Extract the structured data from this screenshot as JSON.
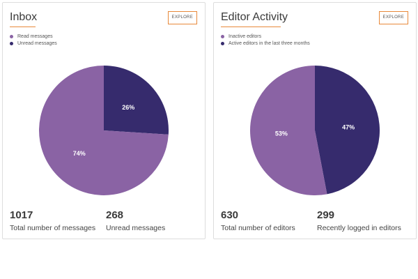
{
  "colors": {
    "primary_slice": "#8a63a4",
    "secondary_slice": "#362b6d",
    "accent": "#e8893a"
  },
  "cards": [
    {
      "title": "Inbox",
      "explore_label": "EXPLORE",
      "legend": [
        "Read messages",
        "Unread messages"
      ],
      "stats": [
        {
          "value": "1017",
          "label": "Total number of messages"
        },
        {
          "value": "268",
          "label": "Unread messages"
        }
      ]
    },
    {
      "title": "Editor Activity",
      "explore_label": "EXPLORE",
      "legend": [
        "Inactive editors",
        "Active editors in the last three months"
      ],
      "stats": [
        {
          "value": "630",
          "label": "Total number of editors"
        },
        {
          "value": "299",
          "label": "Recently logged in editors"
        }
      ]
    }
  ],
  "chart_data": [
    {
      "type": "pie",
      "categories": [
        "Read messages",
        "Unread messages"
      ],
      "values": [
        74,
        26
      ],
      "value_labels": [
        "74%",
        "26%"
      ]
    },
    {
      "type": "pie",
      "categories": [
        "Inactive editors",
        "Active editors in the last three months"
      ],
      "values": [
        53,
        47
      ],
      "value_labels": [
        "53%",
        "47%"
      ]
    }
  ]
}
